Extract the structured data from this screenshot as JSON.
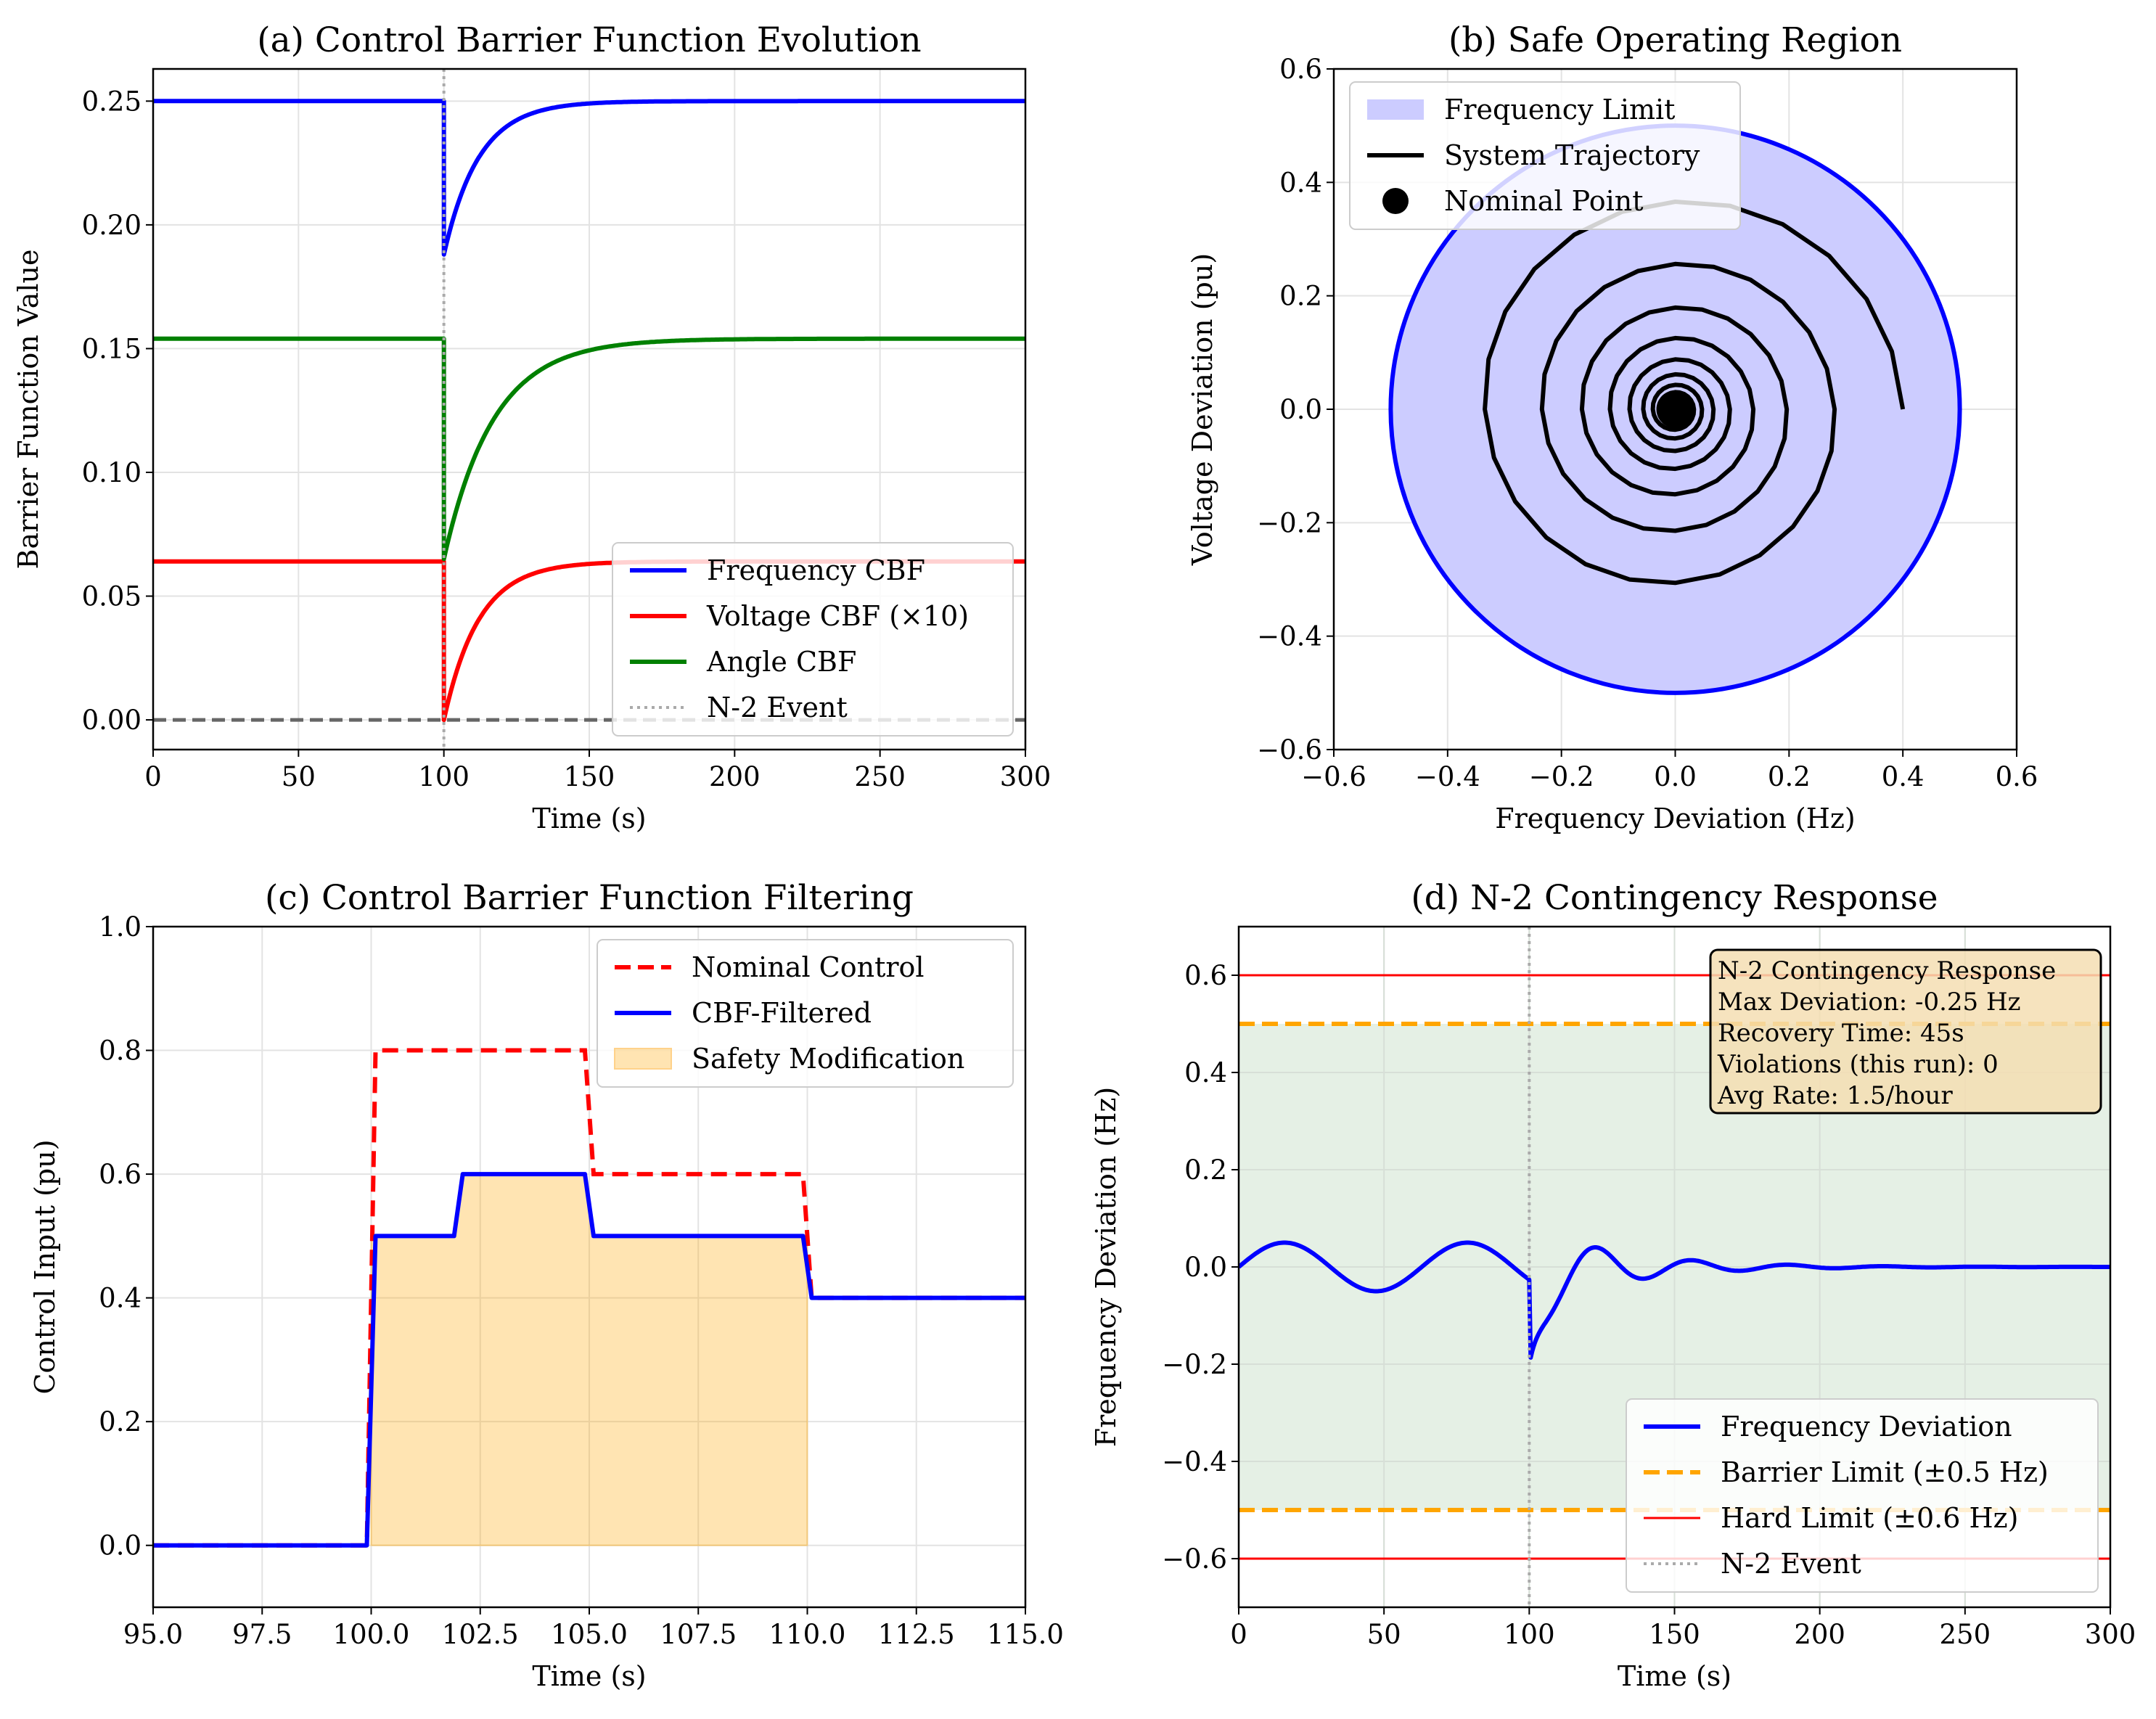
{
  "chart_data": [
    {
      "id": "a",
      "type": "line",
      "title": "(a) Control Barrier Function Evolution",
      "xlabel": "Time (s)",
      "ylabel": "Barrier Function Value",
      "xlim": [
        0,
        300
      ],
      "ylim": [
        -0.012,
        0.263
      ],
      "xticks": [
        0,
        50,
        100,
        150,
        200,
        250,
        300
      ],
      "xtick_labels": [
        "0",
        "50",
        "100",
        "150",
        "200",
        "250",
        "300"
      ],
      "yticks": [
        0,
        0.05,
        0.1,
        0.15,
        0.2,
        0.25
      ],
      "ytick_labels": [
        "0.00",
        "0.05",
        "0.10",
        "0.15",
        "0.20",
        "0.25"
      ],
      "grid": true,
      "legend_position": "lower-right",
      "event_time": 100,
      "zero_line": 0,
      "series": [
        {
          "name": "Frequency CBF",
          "color": "#0000ff",
          "pre": 0.25,
          "min": 0.188,
          "steady": 0.25,
          "tau": 12
        },
        {
          "name": "Voltage CBF (×10)",
          "color": "#ff0000",
          "pre": 0.064,
          "min": 0.0,
          "steady": 0.064,
          "tau": 12
        },
        {
          "name": "Angle CBF",
          "color": "#008000",
          "pre": 0.154,
          "min": 0.065,
          "steady": 0.154,
          "tau": 17
        },
        {
          "name": "N-2 Event",
          "color": "#aaaaaa",
          "style": "dotted"
        }
      ]
    },
    {
      "id": "b",
      "type": "line",
      "title": "(b) Safe Operating Region",
      "xlabel": "Frequency Deviation (Hz)",
      "ylabel": "Voltage Deviation (pu)",
      "xlim": [
        -0.6,
        0.6
      ],
      "ylim": [
        -0.6,
        0.6
      ],
      "xticks": [
        -0.6,
        -0.4,
        -0.2,
        0,
        0.2,
        0.4,
        0.6
      ],
      "xtick_labels": [
        "−0.6",
        "−0.4",
        "−0.2",
        "0.0",
        "0.2",
        "0.4",
        "0.6"
      ],
      "yticks": [
        -0.6,
        -0.4,
        -0.2,
        0,
        0.2,
        0.4,
        0.6
      ],
      "ytick_labels": [
        "−0.6",
        "−0.4",
        "−0.2",
        "0.0",
        "0.2",
        "0.4",
        "0.6"
      ],
      "grid": true,
      "legend_position": "upper-left",
      "limit_radius": 0.5,
      "limit_fill": "#ccccff",
      "limit_edge": "#0000ff",
      "trajectory": {
        "start_radius": 0.4,
        "decay_per_turn": 0.7,
        "turns": 11,
        "color": "#000000"
      },
      "nominal_point": [
        0,
        0
      ],
      "series": [
        {
          "name": "Frequency Limit",
          "color": "#ccccff"
        },
        {
          "name": "System Trajectory",
          "color": "#000000"
        },
        {
          "name": "Nominal Point",
          "color": "#000000"
        }
      ]
    },
    {
      "id": "c",
      "type": "line",
      "title": "(c) Control Barrier Function Filtering",
      "xlabel": "Time (s)",
      "ylabel": "Control Input (pu)",
      "xlim": [
        95,
        115
      ],
      "ylim": [
        -0.1,
        1.0
      ],
      "xticks": [
        95,
        97.5,
        100,
        102.5,
        105,
        107.5,
        110,
        112.5,
        115
      ],
      "xtick_labels": [
        "95.0",
        "97.5",
        "100.0",
        "102.5",
        "105.0",
        "107.5",
        "110.0",
        "112.5",
        "115.0"
      ],
      "yticks": [
        0,
        0.2,
        0.4,
        0.6,
        0.8,
        1.0
      ],
      "ytick_labels": [
        "0.0",
        "0.2",
        "0.4",
        "0.6",
        "0.8",
        "1.0"
      ],
      "grid": true,
      "legend_position": "upper-right",
      "series": [
        {
          "name": "Nominal Control",
          "color": "#ff0000",
          "style": "dashed",
          "x": [
            95,
            99.9,
            100.1,
            104.9,
            105.1,
            109.9,
            110.1,
            115
          ],
          "y": [
            0,
            0,
            0.8,
            0.8,
            0.6,
            0.6,
            0.4,
            0.4
          ]
        },
        {
          "name": "CBF-Filtered",
          "color": "#0000ff",
          "x": [
            95,
            99.9,
            100.1,
            101.9,
            102.1,
            104.9,
            105.1,
            109.9,
            110.1,
            115
          ],
          "y": [
            0,
            0,
            0.5,
            0.5,
            0.6,
            0.6,
            0.5,
            0.5,
            0.4,
            0.4
          ]
        },
        {
          "name": "Safety Modification",
          "color": "#ffa500",
          "x": [
            100,
            101.9,
            102.1,
            104.9,
            105.1,
            110
          ],
          "y": [
            0.5,
            0.5,
            0.6,
            0.6,
            0.5,
            0.5
          ]
        }
      ]
    },
    {
      "id": "d",
      "type": "line",
      "title": "(d) N-2 Contingency Response",
      "xlabel": "Time (s)",
      "ylabel": "Frequency Deviation (Hz)",
      "xlim": [
        0,
        300
      ],
      "ylim": [
        -0.7,
        0.7
      ],
      "xticks": [
        0,
        50,
        100,
        150,
        200,
        250,
        300
      ],
      "xtick_labels": [
        "0",
        "50",
        "100",
        "150",
        "200",
        "250",
        "300"
      ],
      "yticks": [
        -0.6,
        -0.4,
        -0.2,
        0,
        0.2,
        0.4,
        0.6
      ],
      "ytick_labels": [
        "−0.6",
        "−0.4",
        "−0.2",
        "0.0",
        "0.2",
        "0.4",
        "0.6"
      ],
      "grid": true,
      "legend_position": "lower-right",
      "event_time": 100,
      "barrier_limit": 0.5,
      "hard_limit": 0.6,
      "safe_band_color": "#e5f0e5",
      "pre_event": {
        "amplitude": 0.05,
        "period": 63
      },
      "post_event": {
        "min": -0.25,
        "min_time": 100.5
      },
      "series": [
        {
          "name": "Frequency Deviation",
          "color": "#0000ff"
        },
        {
          "name": "Barrier Limit (±0.5 Hz)",
          "color": "#ffa500",
          "style": "dashed"
        },
        {
          "name": "Hard Limit (±0.6 Hz)",
          "color": "#ff0000"
        },
        {
          "name": "N-2 Event",
          "color": "#aaaaaa",
          "style": "dotted"
        }
      ],
      "info_box": [
        "N-2 Contingency Response",
        "Max Deviation: -0.25 Hz",
        "Recovery Time: 45s",
        "Violations (this run): 0",
        "Avg Rate: 1.5/hour"
      ]
    }
  ]
}
